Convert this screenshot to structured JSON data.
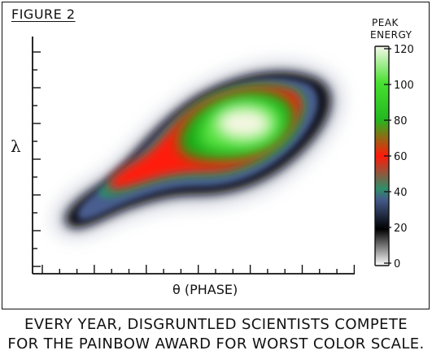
{
  "figure_label": "FIGURE 2",
  "caption": {
    "line1": "EVERY YEAR, DISGRUNTLED SCIENTISTS COMPETE",
    "line2": "FOR THE PAINBOW AWARD FOR WORST COLOR SCALE."
  },
  "chart_data": {
    "type": "heatmap",
    "title": "",
    "xlabel": "θ (PHASE)",
    "ylabel": "λ",
    "colorbar": {
      "label_line1": "PEAK",
      "label_line2": "ENERGY",
      "ticks": [
        0,
        20,
        40,
        60,
        80,
        100,
        120
      ],
      "tick_labels": [
        "0",
        "20",
        "40",
        "60",
        "80",
        "100",
        "120"
      ],
      "range": [
        0,
        120
      ],
      "colormap": [
        {
          "value": 0,
          "color": "#ffffff"
        },
        {
          "value": 20,
          "color": "#000000"
        },
        {
          "value": 36,
          "color": "#455a8a"
        },
        {
          "value": 42,
          "color": "#2e8f6a"
        },
        {
          "value": 60,
          "color": "#ff1a0a"
        },
        {
          "value": 80,
          "color": "#23b81f"
        },
        {
          "value": 100,
          "color": "#48e030"
        },
        {
          "value": 120,
          "color": "#f6f8ea"
        }
      ]
    },
    "x_ticks_labeled": false,
    "y_ticks_labeled": false,
    "peak_value": 120
  }
}
